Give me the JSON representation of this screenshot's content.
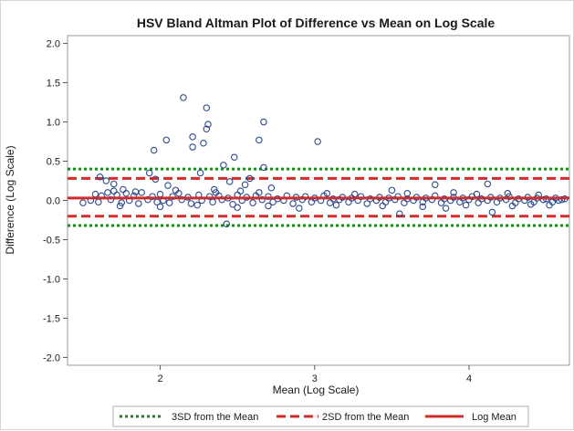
{
  "chart_data": {
    "type": "scatter",
    "title": "HSV Bland Altman Plot of Difference vs Mean on Log Scale",
    "xlabel": "Mean (Log Scale)",
    "ylabel": "Difference (Log Scale)",
    "xlim": [
      1.4,
      4.65
    ],
    "ylim": [
      -2.1,
      2.1
    ],
    "x_ticks": [
      "2",
      "3",
      "4"
    ],
    "x_tick_values": [
      2,
      3,
      4
    ],
    "y_ticks": [
      "2.0",
      "1.5",
      "1.0",
      "0.5",
      "0.0",
      "-0.5",
      "-1.0",
      "-1.5",
      "-2.0"
    ],
    "y_tick_values": [
      2.0,
      1.5,
      1.0,
      0.5,
      0.0,
      -0.5,
      -1.0,
      -1.5,
      -2.0
    ],
    "grid": false,
    "legend_position": "bottom",
    "reference_lines": [
      {
        "name": "3SD from the Mean",
        "y": [
          0.4,
          -0.32
        ],
        "color": "#1a8a1a",
        "style": "dotted"
      },
      {
        "name": "2SD from the Mean",
        "y": [
          0.28,
          -0.2
        ],
        "color": "#d42a2a",
        "style": "dashed"
      },
      {
        "name": "Log Mean",
        "y": [
          0.03
        ],
        "color": "#d42a2a",
        "style": "solid"
      }
    ],
    "marker_color": "#2c4a8c",
    "series": [
      {
        "name": "",
        "points": [
          [
            2.15,
            1.31
          ],
          [
            2.3,
            1.18
          ],
          [
            2.31,
            0.97
          ],
          [
            2.67,
            1.0
          ],
          [
            2.3,
            0.91
          ],
          [
            3.02,
            0.75
          ],
          [
            2.64,
            0.77
          ],
          [
            2.04,
            0.77
          ],
          [
            1.96,
            0.64
          ],
          [
            2.21,
            0.81
          ],
          [
            2.28,
            0.73
          ],
          [
            2.21,
            0.68
          ],
          [
            2.48,
            0.55
          ],
          [
            2.41,
            0.45
          ],
          [
            2.67,
            0.42
          ],
          [
            1.93,
            0.35
          ],
          [
            2.26,
            0.35
          ],
          [
            1.61,
            0.3
          ],
          [
            2.58,
            0.28
          ],
          [
            1.97,
            0.27
          ],
          [
            1.65,
            0.25
          ],
          [
            2.45,
            0.24
          ],
          [
            1.7,
            0.21
          ],
          [
            2.05,
            0.19
          ],
          [
            2.55,
            0.2
          ],
          [
            2.35,
            0.14
          ],
          [
            2.72,
            0.16
          ],
          [
            3.78,
            0.2
          ],
          [
            4.12,
            0.21
          ],
          [
            3.5,
            0.13
          ],
          [
            2.43,
            -0.3
          ],
          [
            3.55,
            -0.17
          ],
          [
            3.85,
            -0.1
          ],
          [
            4.15,
            -0.15
          ],
          [
            2.9,
            -0.1
          ],
          [
            1.5,
            -0.03
          ],
          [
            1.58,
            0.08
          ],
          [
            1.62,
            0.06
          ],
          [
            1.66,
            0.1
          ],
          [
            1.72,
            0.07
          ],
          [
            1.78,
            0.09
          ],
          [
            1.83,
            0.06
          ],
          [
            1.88,
            0.1
          ],
          [
            1.95,
            0.05
          ],
          [
            2.0,
            0.08
          ],
          [
            2.08,
            0.05
          ],
          [
            2.12,
            0.09
          ],
          [
            2.18,
            0.04
          ],
          [
            2.25,
            0.07
          ],
          [
            2.32,
            0.05
          ],
          [
            2.38,
            0.06
          ],
          [
            2.44,
            0.03
          ],
          [
            2.5,
            0.07
          ],
          [
            2.56,
            0.04
          ],
          [
            2.62,
            0.06
          ],
          [
            2.7,
            0.05
          ],
          [
            2.76,
            0.02
          ],
          [
            2.82,
            0.06
          ],
          [
            2.88,
            0.04
          ],
          [
            2.94,
            0.05
          ],
          [
            3.0,
            0.03
          ],
          [
            3.06,
            0.06
          ],
          [
            3.12,
            0.02
          ],
          [
            3.18,
            0.04
          ],
          [
            3.24,
            0.03
          ],
          [
            3.3,
            0.05
          ],
          [
            3.36,
            0.02
          ],
          [
            3.42,
            0.04
          ],
          [
            3.48,
            0.03
          ],
          [
            3.54,
            0.05
          ],
          [
            3.6,
            0.02
          ],
          [
            3.66,
            0.04
          ],
          [
            3.72,
            0.03
          ],
          [
            3.78,
            0.06
          ],
          [
            3.84,
            0.02
          ],
          [
            3.9,
            0.04
          ],
          [
            3.96,
            0.03
          ],
          [
            4.02,
            0.05
          ],
          [
            4.08,
            0.02
          ],
          [
            4.14,
            0.04
          ],
          [
            4.2,
            0.03
          ],
          [
            4.26,
            0.05
          ],
          [
            4.32,
            0.02
          ],
          [
            4.38,
            0.04
          ],
          [
            4.44,
            0.03
          ],
          [
            4.5,
            0.02
          ],
          [
            4.56,
            0.03
          ],
          [
            4.6,
            0.01
          ],
          [
            1.55,
            0.0
          ],
          [
            1.6,
            -0.02
          ],
          [
            1.68,
            0.01
          ],
          [
            1.75,
            -0.03
          ],
          [
            1.8,
            0.0
          ],
          [
            1.86,
            -0.04
          ],
          [
            1.92,
            0.01
          ],
          [
            1.98,
            -0.02
          ],
          [
            2.02,
            0.0
          ],
          [
            2.06,
            -0.03
          ],
          [
            2.14,
            0.01
          ],
          [
            2.2,
            -0.04
          ],
          [
            2.27,
            0.0
          ],
          [
            2.34,
            -0.02
          ],
          [
            2.4,
            0.01
          ],
          [
            2.47,
            -0.05
          ],
          [
            2.53,
            0.0
          ],
          [
            2.6,
            -0.03
          ],
          [
            2.66,
            0.01
          ],
          [
            2.73,
            -0.02
          ],
          [
            2.8,
            0.0
          ],
          [
            2.86,
            -0.04
          ],
          [
            2.92,
            0.01
          ],
          [
            2.98,
            -0.02
          ],
          [
            3.04,
            0.0
          ],
          [
            3.1,
            -0.03
          ],
          [
            3.16,
            0.01
          ],
          [
            3.22,
            -0.02
          ],
          [
            3.28,
            0.0
          ],
          [
            3.34,
            -0.04
          ],
          [
            3.4,
            0.0
          ],
          [
            3.46,
            -0.02
          ],
          [
            3.52,
            0.01
          ],
          [
            3.58,
            -0.03
          ],
          [
            3.64,
            0.0
          ],
          [
            3.7,
            -0.02
          ],
          [
            3.76,
            0.01
          ],
          [
            3.82,
            -0.03
          ],
          [
            3.88,
            0.0
          ],
          [
            3.94,
            -0.02
          ],
          [
            4.0,
            0.01
          ],
          [
            4.06,
            -0.03
          ],
          [
            4.12,
            0.0
          ],
          [
            4.18,
            -0.02
          ],
          [
            4.24,
            0.01
          ],
          [
            4.3,
            -0.03
          ],
          [
            4.36,
            0.0
          ],
          [
            4.42,
            -0.02
          ],
          [
            4.48,
            0.01
          ],
          [
            4.54,
            -0.02
          ],
          [
            4.58,
            0.0
          ],
          [
            4.62,
            0.02
          ],
          [
            1.7,
            0.12
          ],
          [
            1.76,
            0.14
          ],
          [
            1.84,
            0.11
          ],
          [
            2.1,
            0.13
          ],
          [
            2.36,
            0.1
          ],
          [
            2.52,
            0.12
          ],
          [
            2.64,
            0.1
          ],
          [
            3.08,
            0.09
          ],
          [
            3.26,
            0.08
          ],
          [
            3.6,
            0.09
          ],
          [
            3.9,
            0.1
          ],
          [
            4.05,
            0.08
          ],
          [
            4.25,
            0.09
          ],
          [
            4.45,
            0.07
          ],
          [
            1.74,
            -0.07
          ],
          [
            2.0,
            -0.08
          ],
          [
            2.24,
            -0.06
          ],
          [
            2.5,
            -0.09
          ],
          [
            2.7,
            -0.07
          ],
          [
            3.14,
            -0.06
          ],
          [
            3.44,
            -0.07
          ],
          [
            3.7,
            -0.08
          ],
          [
            3.98,
            -0.06
          ],
          [
            4.28,
            -0.07
          ],
          [
            4.4,
            -0.05
          ],
          [
            4.52,
            -0.06
          ]
        ]
      }
    ]
  },
  "legend": {
    "items": [
      {
        "label": "3SD from the Mean",
        "color": "#1a8a1a",
        "style": "dotted"
      },
      {
        "label": "2SD from the Mean",
        "color": "#d42a2a",
        "style": "dashed"
      },
      {
        "label": "Log Mean",
        "color": "#d42a2a",
        "style": "solid"
      }
    ]
  }
}
